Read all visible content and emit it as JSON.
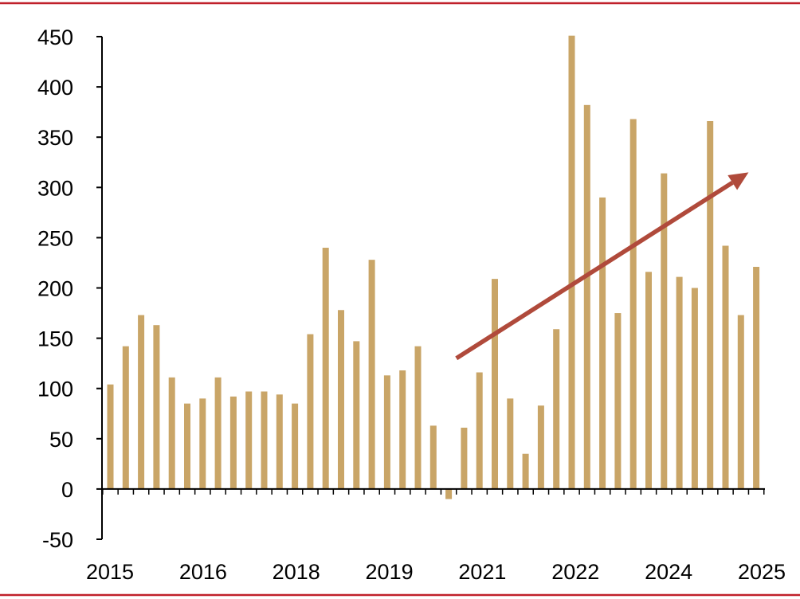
{
  "chart_data": {
    "type": "bar",
    "title": "",
    "xlabel": "",
    "ylabel": "",
    "ylim": [
      -50,
      450
    ],
    "yticks": [
      -50,
      0,
      50,
      100,
      150,
      200,
      250,
      300,
      350,
      400,
      450
    ],
    "ytick_labels": [
      "-50",
      "0",
      "50",
      "100",
      "150",
      "200",
      "250",
      "300",
      "350",
      "400",
      "450"
    ],
    "xtick_labels": [
      "2015",
      "2016",
      "2018",
      "2019",
      "2021",
      "2022",
      "2024",
      "2025"
    ],
    "grid": false,
    "legend": "none",
    "values": [
      104,
      142,
      173,
      163,
      111,
      85,
      90,
      111,
      92,
      97,
      97,
      94,
      85,
      154,
      240,
      178,
      147,
      228,
      113,
      118,
      142,
      63,
      -10,
      61,
      116,
      209,
      90,
      35,
      83,
      159,
      451,
      382,
      290,
      175,
      368,
      216,
      314,
      211,
      200,
      366,
      242,
      173,
      221
    ],
    "trend_arrow": {
      "from": [
        22.5,
        130
      ],
      "to": [
        41.5,
        315
      ]
    },
    "colors": {
      "bar": "#C9A567",
      "arrow": "#B04A3B",
      "frame_line": "#C0202A",
      "axis": "#000000"
    }
  }
}
